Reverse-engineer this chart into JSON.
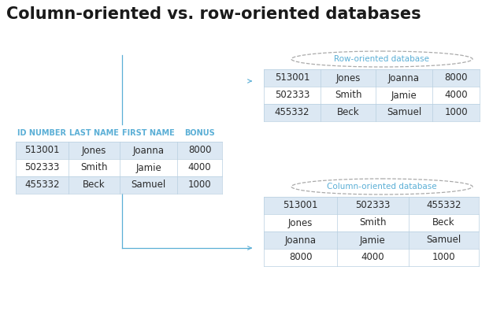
{
  "title": "Column-oriented vs. row-oriented databases",
  "title_fontsize": 15,
  "title_color": "#1a1a1a",
  "title_fontweight": "bold",
  "left_table_headers": [
    "ID NUMBER",
    "LAST NAME",
    "FIRST NAME",
    "BONUS"
  ],
  "left_table_header_color": "#5bafd6",
  "left_table_rows": [
    [
      "513001",
      "Jones",
      "Joanna",
      "8000"
    ],
    [
      "502333",
      "Smith",
      "Jamie",
      "4000"
    ],
    [
      "455332",
      "Beck",
      "Samuel",
      "1000"
    ]
  ],
  "left_table_row_colors": [
    "#dce8f3",
    "#ffffff",
    "#dce8f3"
  ],
  "left_table_text_color": "#2a2a2a",
  "row_db_label": "Row-oriented database",
  "row_db_label_color": "#5bafd6",
  "row_table_rows": [
    [
      "513001",
      "Jones",
      "Joanna",
      "8000"
    ],
    [
      "502333",
      "Smith",
      "Jamie",
      "4000"
    ],
    [
      "455332",
      "Beck",
      "Samuel",
      "1000"
    ]
  ],
  "row_table_row_colors": [
    "#dce8f3",
    "#ffffff",
    "#dce8f3"
  ],
  "row_table_text_color": "#2a2a2a",
  "col_db_label": "Column-oriented database",
  "col_db_label_color": "#5bafd6",
  "col_table_rows": [
    [
      "513001",
      "502333",
      "455332"
    ],
    [
      "Jones",
      "Smith",
      "Beck"
    ],
    [
      "Joanna",
      "Jamie",
      "Samuel"
    ],
    [
      "8000",
      "4000",
      "1000"
    ]
  ],
  "col_table_row_colors": [
    "#dce8f3",
    "#ffffff",
    "#dce8f3",
    "#ffffff"
  ],
  "col_table_text_color": "#2a2a2a",
  "arrow_color": "#5bafd6",
  "line_color": "#5bafd6",
  "ellipse_edge_color": "#aaaaaa",
  "cell_border_color": "#b8cfe0",
  "bg_color": "#ffffff"
}
